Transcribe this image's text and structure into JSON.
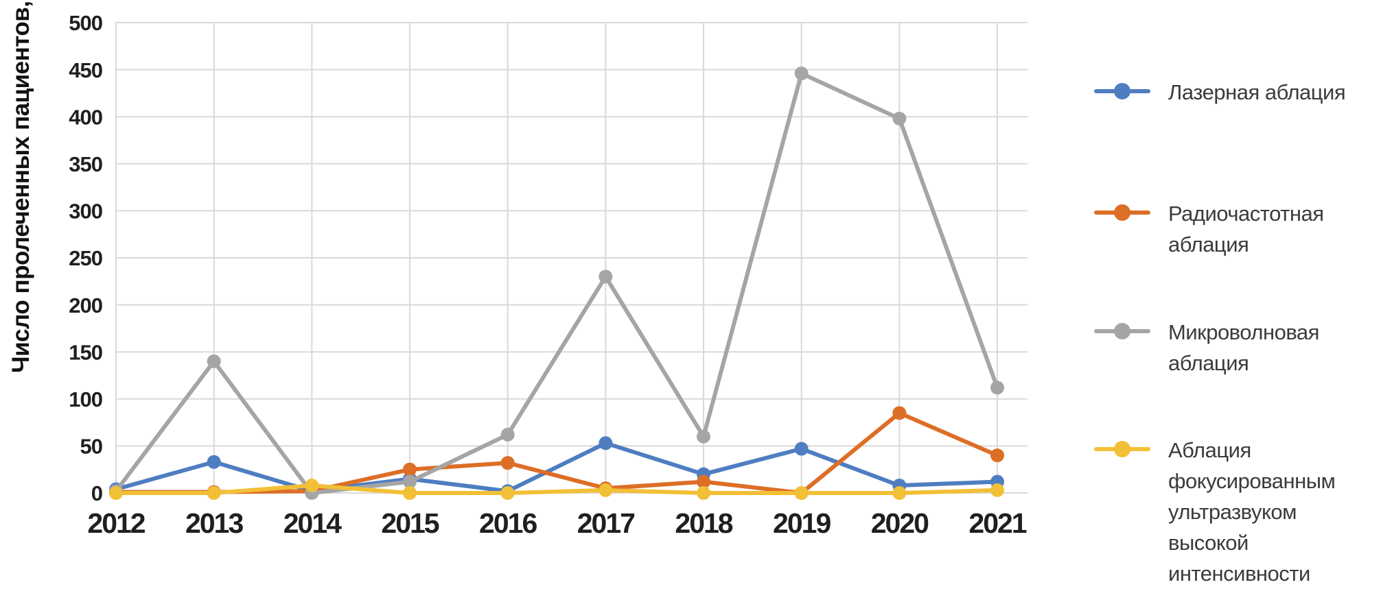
{
  "chart_data": {
    "type": "line",
    "title": "",
    "ylabel": "Число пролеченных пациентов,",
    "ylabel_var": "n",
    "xlabel": "",
    "x": [
      2012,
      2013,
      2014,
      2015,
      2016,
      2017,
      2018,
      2019,
      2020,
      2021
    ],
    "ylim": [
      0,
      500
    ],
    "ytick_step": 50,
    "grid": true,
    "legend_position": "right",
    "series": [
      {
        "key": "laser-ablation",
        "name": "Лазерная аблация",
        "color": "#4e7ec1",
        "values": [
          4,
          33,
          2,
          15,
          2,
          53,
          20,
          47,
          8,
          12
        ]
      },
      {
        "key": "rf-ablation",
        "name": "Радиочастотная аблация",
        "color": "#dd6e26",
        "values": [
          1,
          1,
          2,
          25,
          32,
          5,
          12,
          0,
          85,
          40
        ]
      },
      {
        "key": "microwave-ablation",
        "name": "Микроволновая аблация",
        "color": "#a5a5a5",
        "values": [
          2,
          140,
          0,
          12,
          62,
          230,
          60,
          446,
          398,
          112
        ]
      },
      {
        "key": "hifu-ablation",
        "name": "Аблация фокусированным ультразвуком высокой интенсивности",
        "color": "#f2c037",
        "values": [
          0,
          0,
          8,
          0,
          0,
          3,
          0,
          0,
          0,
          3
        ]
      }
    ]
  },
  "legend": {
    "items": [
      "Лазерная аблация",
      "Радиочастотная аблация",
      "Микроволновая аблация",
      "Аблация фокусированным ультразвуком высокой интенсивности"
    ]
  }
}
